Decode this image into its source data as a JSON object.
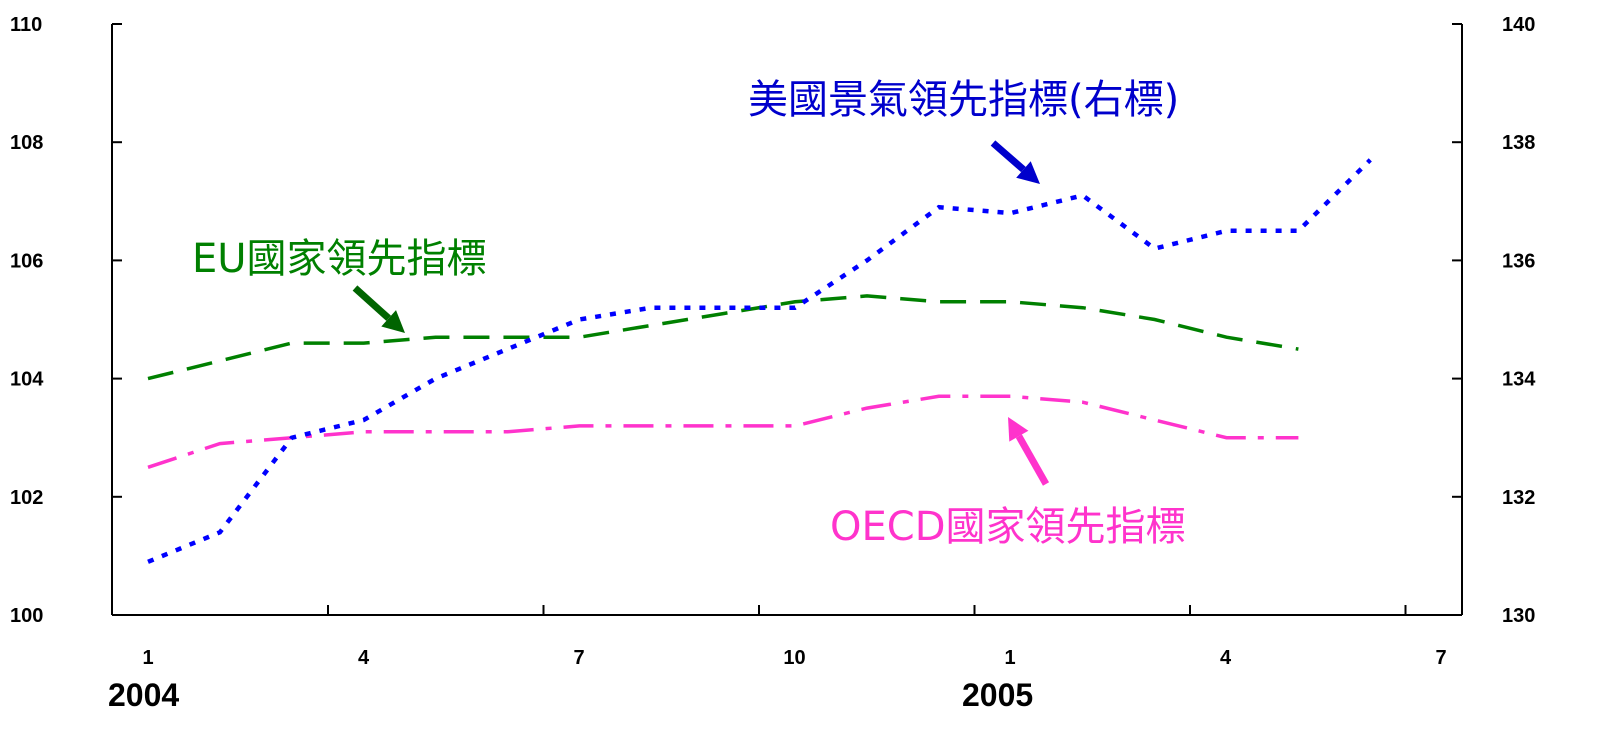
{
  "chart_data": {
    "type": "line",
    "x_tick_labels": [
      "1",
      "4",
      "7",
      "10",
      "1",
      "4",
      "7"
    ],
    "year_labels": [
      "2004",
      "2005"
    ],
    "left_axis": {
      "ylim": [
        100,
        110
      ],
      "ticks": [
        "100",
        "102",
        "104",
        "106",
        "108",
        "110"
      ]
    },
    "right_axis": {
      "ylim": [
        130,
        140
      ],
      "ticks": [
        "130",
        "132",
        "134",
        "136",
        "138",
        "140"
      ]
    },
    "series": [
      {
        "name": "EU國家領先指標",
        "axis": "left",
        "color": "#008000",
        "dash": "long-dash",
        "months": [
          1,
          2,
          3,
          4,
          5,
          6,
          7,
          8,
          9,
          10,
          11,
          12,
          13,
          14,
          15,
          16,
          17
        ],
        "values": [
          104.0,
          104.3,
          104.6,
          104.6,
          104.7,
          104.7,
          104.7,
          104.9,
          105.1,
          105.3,
          105.4,
          105.3,
          105.3,
          105.2,
          105.0,
          104.7,
          104.5
        ]
      },
      {
        "name": "OECD國家領先指標",
        "axis": "left",
        "color": "#ff33cc",
        "dash": "dash-dot",
        "months": [
          1,
          2,
          3,
          4,
          5,
          6,
          7,
          8,
          9,
          10,
          11,
          12,
          13,
          14,
          15,
          16,
          17
        ],
        "values": [
          102.5,
          102.9,
          103.0,
          103.1,
          103.1,
          103.1,
          103.2,
          103.2,
          103.2,
          103.2,
          103.5,
          103.7,
          103.7,
          103.6,
          103.3,
          103.0,
          103.0
        ]
      },
      {
        "name": "美國景氣領先指標(右標)",
        "axis": "right",
        "color": "#0000ff",
        "dash": "dotted",
        "months": [
          1,
          2,
          3,
          4,
          5,
          6,
          7,
          8,
          9,
          10,
          11,
          12,
          13,
          14,
          15,
          16,
          17,
          18
        ],
        "values": [
          130.9,
          131.4,
          133.0,
          133.3,
          134.0,
          134.5,
          135.0,
          135.2,
          135.2,
          135.2,
          136.0,
          136.9,
          136.8,
          137.1,
          136.2,
          136.5,
          136.5,
          137.7
        ]
      }
    ]
  }
}
